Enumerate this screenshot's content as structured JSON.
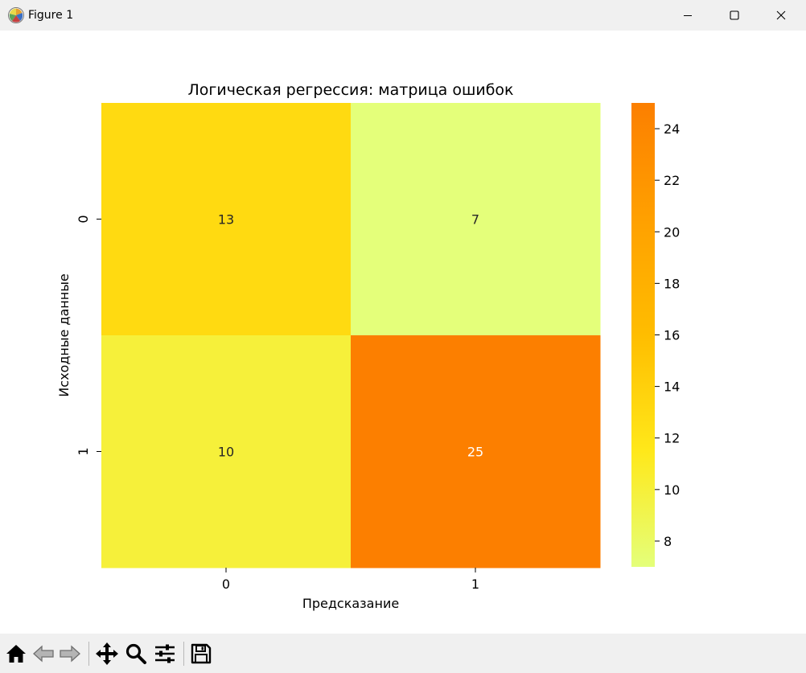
{
  "window": {
    "title": "Figure 1",
    "icon": "matplotlib-icon",
    "controls": [
      "minimize-icon",
      "maximize-icon",
      "close-icon"
    ]
  },
  "colormap": {
    "name": "Wistia",
    "stops": [
      "#e4ff7a",
      "#ffe81a",
      "#ffbd00",
      "#ffa000",
      "#fc7f00"
    ]
  },
  "chart_data": {
    "type": "heatmap",
    "title": "Логическая регрессия: матрица ошибок",
    "xlabel": "Предсказание",
    "ylabel": "Исходные данные",
    "x_categories": [
      "0",
      "1"
    ],
    "y_categories": [
      "0",
      "1"
    ],
    "values": [
      [
        13,
        7
      ],
      [
        10,
        25
      ]
    ],
    "annotations": [
      [
        "13",
        "7"
      ],
      [
        "10",
        "25"
      ]
    ],
    "colorbar": {
      "range": [
        7,
        25
      ],
      "ticks": [
        8,
        10,
        12,
        14,
        16,
        18,
        20,
        22,
        24
      ],
      "tick_labels": [
        "8",
        "10",
        "12",
        "14",
        "16",
        "18",
        "20",
        "22",
        "24"
      ]
    },
    "grid": false
  },
  "toolbar": {
    "tools": [
      {
        "name": "home-icon",
        "state": "enabled"
      },
      {
        "name": "back-icon",
        "state": "disabled"
      },
      {
        "name": "forward-icon",
        "state": "disabled"
      },
      {
        "name": "pan-icon",
        "state": "enabled"
      },
      {
        "name": "zoom-icon",
        "state": "enabled"
      },
      {
        "name": "configure-subplots-icon",
        "state": "enabled"
      },
      {
        "name": "save-icon",
        "state": "enabled"
      }
    ]
  }
}
